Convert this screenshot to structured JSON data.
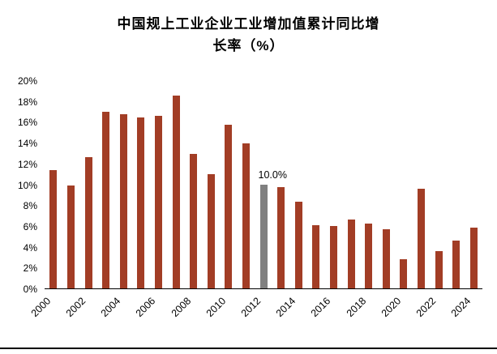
{
  "title": {
    "line1": "中国规上工业企业工业增加值累计同比增",
    "line2": "长率（%）"
  },
  "chart_data": {
    "type": "bar",
    "title": "中国规上工业企业工业增加值累计同比增长率（%）",
    "categories": [
      2000,
      2001,
      2002,
      2003,
      2004,
      2005,
      2006,
      2007,
      2008,
      2009,
      2010,
      2011,
      2012,
      2013,
      2014,
      2015,
      2016,
      2017,
      2018,
      2019,
      2020,
      2021,
      2022,
      2023,
      2024
    ],
    "values": [
      11.4,
      9.9,
      12.6,
      17.0,
      16.7,
      16.4,
      16.6,
      18.5,
      12.9,
      11.0,
      15.7,
      13.9,
      10.0,
      9.7,
      8.3,
      6.1,
      6.0,
      6.6,
      6.2,
      5.7,
      2.8,
      9.6,
      3.6,
      4.6,
      5.8
    ],
    "ylabel": "",
    "xlabel": "",
    "ylim": [
      0,
      20
    ],
    "ytick_step": 2,
    "ytick_suffix": "%",
    "xtick_labels": [
      2000,
      2002,
      2004,
      2006,
      2008,
      2010,
      2012,
      2014,
      2016,
      2018,
      2020,
      2022,
      2024
    ],
    "grid": false,
    "legend": false,
    "bar_color": "#A23D25",
    "highlight": {
      "year": 2012,
      "color": "#808080",
      "label": "10.0%"
    }
  }
}
